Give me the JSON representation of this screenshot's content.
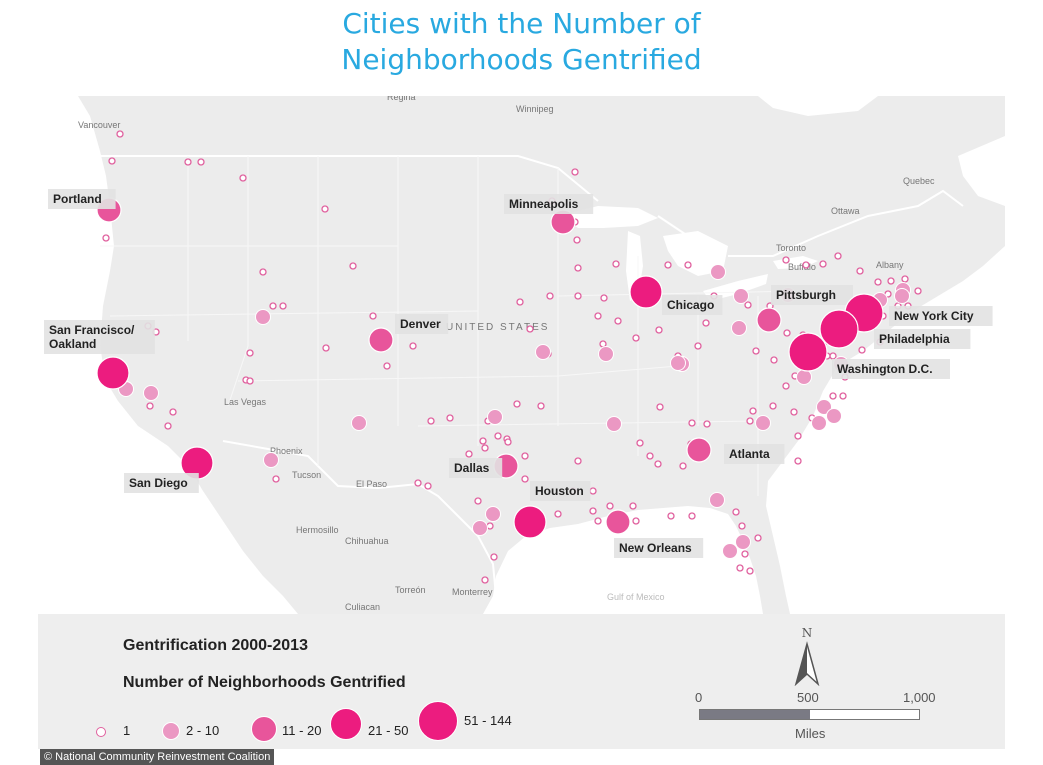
{
  "title_line1": "Cities with the Number of",
  "title_line2": "Neighborhoods Gentrified",
  "legend": {
    "title": "Gentrification 2000-2013",
    "subtitle": "Number of Neighborhoods Gentrified",
    "classes": [
      "1",
      "2 - 10",
      "11 - 20",
      "21 - 50",
      "51 - 144"
    ]
  },
  "credit": "© National Community Reinvestment Coalition",
  "scale": {
    "ticks": [
      "0",
      "500",
      "1,000"
    ],
    "unit": "Miles"
  },
  "north_label": "N",
  "basemap_labels": [
    "Regina",
    "Winnipeg",
    "Vancouver",
    "Quebec",
    "Ottawa",
    "Toronto",
    "Buffalo",
    "Albany",
    "Las Vegas",
    "Phoenix",
    "Tucson",
    "El Paso",
    "Hermosillo",
    "Chihuahua",
    "Torreón",
    "Monterrey",
    "Culiacan",
    "UNITED STATES",
    "Gulf of Mexico"
  ],
  "cities": [
    {
      "name": "Portland",
      "class": 3
    },
    {
      "name": "Minneapolis",
      "class": 3
    },
    {
      "name": "Chicago",
      "class": 4
    },
    {
      "name": "Pittsburgh",
      "class": 3
    },
    {
      "name": "New York City",
      "class": 5
    },
    {
      "name": "Philadelphia",
      "class": 5
    },
    {
      "name": "Washington D.C.",
      "class": 5
    },
    {
      "name": "San Francisco/\nOakland",
      "class": 4
    },
    {
      "name": "Denver",
      "class": 3
    },
    {
      "name": "San Diego",
      "class": 4
    },
    {
      "name": "Dallas",
      "class": 3
    },
    {
      "name": "Houston",
      "class": 4
    },
    {
      "name": "Atlanta",
      "class": 3
    },
    {
      "name": "New Orleans",
      "class": 3
    }
  ],
  "colors": {
    "water": "#ffffff",
    "land": "#ececec",
    "title": "#29a9e0",
    "bubble": "#ec1c7f",
    "bubble_mid": "#e8559b",
    "bubble_light": "#eb98c3"
  }
}
